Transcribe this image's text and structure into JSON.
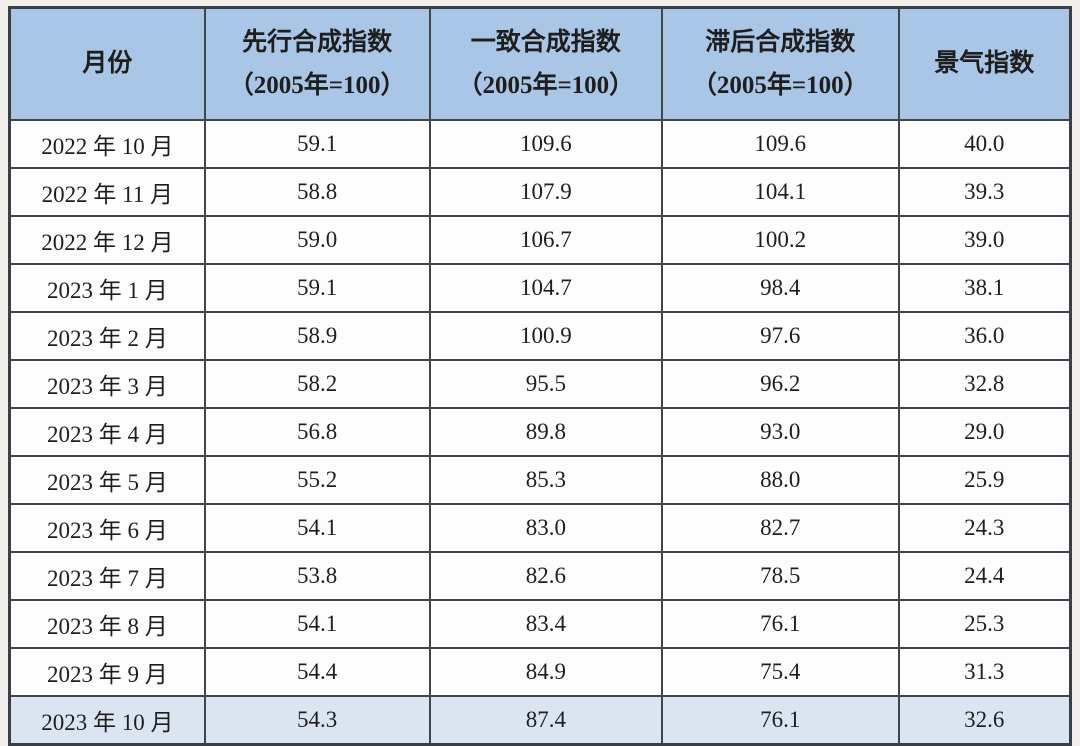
{
  "page": {
    "background": "#f1efec"
  },
  "table": {
    "header": [
      {
        "line1": "月份",
        "line2": ""
      },
      {
        "line1": "先行合成指数",
        "line2": "（2005年=100）"
      },
      {
        "line1": "一致合成指数",
        "line2": "（2005年=100）"
      },
      {
        "line1": "滞后合成指数",
        "line2": "（2005年=100）"
      },
      {
        "line1": "景气指数",
        "line2": ""
      }
    ],
    "highlight_last_row": true,
    "colors": {
      "header_bg": "#a9c6e6",
      "highlight_row_bg": "#dbe5f1",
      "row_bg": "#fdfdfd",
      "border": "#43454c",
      "text": "#1e1e1e"
    }
  },
  "chart_data": {
    "type": "table",
    "title": "",
    "columns": [
      "月份",
      "先行合成指数（2005年=100）",
      "一致合成指数（2005年=100）",
      "滞后合成指数（2005年=100）",
      "景气指数"
    ],
    "rows": [
      [
        "2022 年 10 月",
        "59.1",
        "109.6",
        "109.6",
        "40.0"
      ],
      [
        "2022 年 11 月",
        "58.8",
        "107.9",
        "104.1",
        "39.3"
      ],
      [
        "2022 年 12 月",
        "59.0",
        "106.7",
        "100.2",
        "39.0"
      ],
      [
        "2023 年 1 月",
        "59.1",
        "104.7",
        "98.4",
        "38.1"
      ],
      [
        "2023 年 2 月",
        "58.9",
        "100.9",
        "97.6",
        "36.0"
      ],
      [
        "2023 年 3 月",
        "58.2",
        "95.5",
        "96.2",
        "32.8"
      ],
      [
        "2023 年 4 月",
        "56.8",
        "89.8",
        "93.0",
        "29.0"
      ],
      [
        "2023 年 5 月",
        "55.2",
        "85.3",
        "88.0",
        "25.9"
      ],
      [
        "2023 年 6 月",
        "54.1",
        "83.0",
        "82.7",
        "24.3"
      ],
      [
        "2023 年 7 月",
        "53.8",
        "82.6",
        "78.5",
        "24.4"
      ],
      [
        "2023 年 8 月",
        "54.1",
        "83.4",
        "76.1",
        "25.3"
      ],
      [
        "2023 年 9 月",
        "54.4",
        "84.9",
        "75.4",
        "31.3"
      ],
      [
        "2023 年 10 月",
        "54.3",
        "87.4",
        "76.1",
        "32.6"
      ]
    ]
  }
}
